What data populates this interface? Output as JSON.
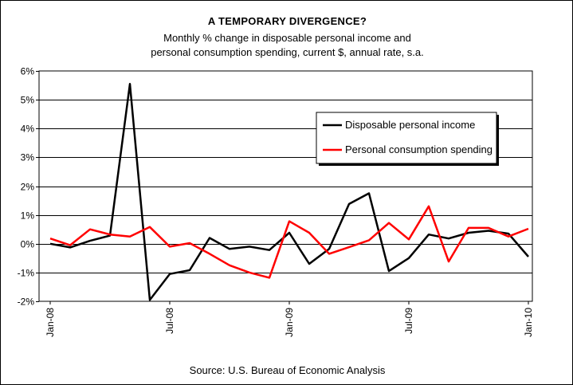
{
  "chart_data": {
    "type": "line",
    "title": "A TEMPORARY DIVERGENCE?",
    "subtitle_lines": [
      "Monthly % change in disposable personal income and",
      "personal consumption spending, current $, annual rate, s.a."
    ],
    "source": "Source: U.S. Bureau of Economic Analysis",
    "x": [
      "Jan-08",
      "Feb-08",
      "Mar-08",
      "Apr-08",
      "May-08",
      "Jun-08",
      "Jul-08",
      "Aug-08",
      "Sep-08",
      "Oct-08",
      "Nov-08",
      "Dec-08",
      "Jan-09",
      "Feb-09",
      "Mar-09",
      "Apr-09",
      "May-09",
      "Jun-09",
      "Jul-09",
      "Aug-09",
      "Sep-09",
      "Oct-09",
      "Nov-09",
      "Dec-09",
      "Jan-10"
    ],
    "x_tick_labels": [
      "Jan-08",
      "Jul-08",
      "Jan-09",
      "Jul-09",
      "Jan-10"
    ],
    "y_tick_labels": [
      "6%",
      "5%",
      "4%",
      "3%",
      "2%",
      "1%",
      "0%",
      "-1%",
      "-2%"
    ],
    "ylim": [
      -2,
      6
    ],
    "grid": true,
    "legend_placement": "top-right",
    "series": [
      {
        "name": "Disposable personal income",
        "color": "#000000",
        "values": [
          0.0,
          -0.13,
          0.1,
          0.28,
          5.55,
          -1.95,
          -1.05,
          -0.92,
          0.2,
          -0.18,
          -0.1,
          -0.22,
          0.38,
          -0.7,
          -0.18,
          1.38,
          1.75,
          -0.95,
          -0.5,
          0.32,
          0.18,
          0.38,
          0.45,
          0.35,
          -0.45
        ]
      },
      {
        "name": "Personal consumption spending",
        "color": "#ff0000",
        "values": [
          0.18,
          -0.05,
          0.5,
          0.32,
          0.25,
          0.58,
          -0.1,
          0.02,
          -0.35,
          -0.75,
          -1.0,
          -1.18,
          0.78,
          0.38,
          -0.35,
          -0.12,
          0.12,
          0.72,
          0.15,
          1.3,
          -0.62,
          0.55,
          0.55,
          0.25,
          0.52
        ]
      }
    ]
  }
}
